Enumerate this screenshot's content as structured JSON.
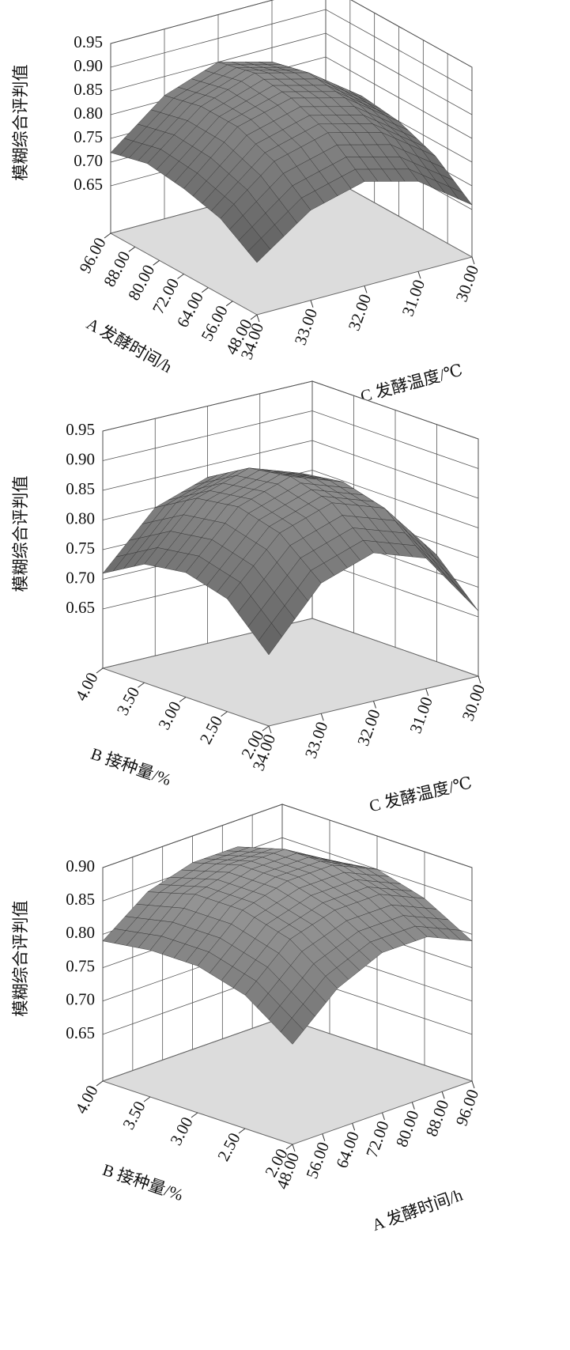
{
  "chart_data": [
    {
      "type": "surface3d",
      "zlabel": "模糊综合评判值",
      "xlabel": "A 发酵时间/h",
      "ylabel": "C 发酵温度/℃",
      "xlim": [
        48,
        96
      ],
      "xticks": [
        {
          "value": 48,
          "label": "48.00"
        },
        {
          "value": 56,
          "label": "56.00"
        },
        {
          "value": 64,
          "label": "64.00"
        },
        {
          "value": 72,
          "label": "72.00"
        },
        {
          "value": 80,
          "label": "80.00"
        },
        {
          "value": 88,
          "label": "88.00"
        },
        {
          "value": 96,
          "label": "96.00"
        }
      ],
      "ylim": [
        34,
        30
      ],
      "yticks": [
        {
          "value": 34,
          "label": "34.00"
        },
        {
          "value": 33,
          "label": "33.00"
        },
        {
          "value": 32,
          "label": "32.00"
        },
        {
          "value": 31,
          "label": "31.00"
        },
        {
          "value": 30,
          "label": "30.00"
        }
      ],
      "zlim": [
        0.55,
        0.95
      ],
      "zticks": [
        0.65,
        {
          "value": 0.7,
          "label": "0.70"
        },
        0.75,
        {
          "value": 0.8,
          "label": "0.80"
        },
        0.85,
        {
          "value": 0.9,
          "label": "0.90"
        },
        0.95
      ],
      "x": [
        48,
        60,
        72,
        84,
        96
      ],
      "y": [
        34,
        33,
        32,
        31,
        30
      ],
      "z": [
        [
          0.66,
          0.74,
          0.77,
          0.74,
          0.66
        ],
        [
          0.71,
          0.8,
          0.83,
          0.8,
          0.72
        ],
        [
          0.73,
          0.83,
          0.86,
          0.83,
          0.75
        ],
        [
          0.74,
          0.83,
          0.87,
          0.84,
          0.76
        ],
        [
          0.72,
          0.81,
          0.85,
          0.82,
          0.75
        ]
      ]
    },
    {
      "type": "surface3d",
      "zlabel": "模糊综合评判值",
      "xlabel": "B 接种量/%",
      "ylabel": "C 发酵温度/℃",
      "xlim": [
        2,
        4
      ],
      "xticks": [
        {
          "value": 2,
          "label": "2.00"
        },
        {
          "value": 2.5,
          "label": "2.50"
        },
        {
          "value": 3,
          "label": "3.00"
        },
        {
          "value": 3.5,
          "label": "3.50"
        },
        {
          "value": 4,
          "label": "4.00"
        }
      ],
      "ylim": [
        34,
        30
      ],
      "yticks": [
        {
          "value": 34,
          "label": "34.00"
        },
        {
          "value": 33,
          "label": "33.00"
        },
        {
          "value": 32,
          "label": "32.00"
        },
        {
          "value": 31,
          "label": "31.00"
        },
        {
          "value": 30,
          "label": "30.00"
        }
      ],
      "zlim": [
        0.55,
        0.95
      ],
      "zticks": [
        0.65,
        {
          "value": 0.7,
          "label": "0.70"
        },
        0.75,
        {
          "value": 0.8,
          "label": "0.80"
        },
        0.85,
        {
          "value": 0.9,
          "label": "0.90"
        },
        0.95
      ],
      "x": [
        2,
        2.5,
        3,
        3.5,
        4
      ],
      "y": [
        34,
        33,
        32,
        31,
        30
      ],
      "z": [
        [
          0.67,
          0.77,
          0.8,
          0.77,
          0.66
        ],
        [
          0.74,
          0.83,
          0.86,
          0.83,
          0.73
        ],
        [
          0.76,
          0.85,
          0.88,
          0.85,
          0.75
        ],
        [
          0.75,
          0.84,
          0.87,
          0.84,
          0.74
        ],
        [
          0.71,
          0.8,
          0.83,
          0.8,
          0.7
        ]
      ]
    },
    {
      "type": "surface3d",
      "zlabel": "模糊综合评判值",
      "xlabel": "B 接种量/%",
      "ylabel": "A 发酵时间/h",
      "xlim": [
        2,
        4
      ],
      "xticks": [
        {
          "value": 2,
          "label": "2.00"
        },
        {
          "value": 2.5,
          "label": "2.50"
        },
        {
          "value": 3,
          "label": "3.00"
        },
        {
          "value": 3.5,
          "label": "3.50"
        },
        {
          "value": 4,
          "label": "4.00"
        }
      ],
      "ylim": [
        48,
        96
      ],
      "yticks": [
        {
          "value": 48,
          "label": "48.00"
        },
        {
          "value": 56,
          "label": "56.00"
        },
        {
          "value": 64,
          "label": "64.00"
        },
        {
          "value": 72,
          "label": "72.00"
        },
        {
          "value": 80,
          "label": "80.00"
        },
        {
          "value": 88,
          "label": "88.00"
        },
        {
          "value": 96,
          "label": "96.00"
        }
      ],
      "zlim": [
        0.58,
        0.9
      ],
      "zticks": [
        0.65,
        {
          "value": 0.7,
          "label": "0.70"
        },
        0.75,
        {
          "value": 0.8,
          "label": "0.80"
        },
        0.85,
        {
          "value": 0.9,
          "label": "0.90"
        }
      ],
      "x": [
        2,
        2.5,
        3,
        3.5,
        4
      ],
      "y": [
        48,
        60,
        72,
        84,
        96
      ],
      "z": [
        [
          0.73,
          0.79,
          0.82,
          0.82,
          0.79
        ],
        [
          0.78,
          0.84,
          0.86,
          0.86,
          0.83
        ],
        [
          0.8,
          0.86,
          0.88,
          0.88,
          0.85
        ],
        [
          0.8,
          0.86,
          0.88,
          0.88,
          0.84
        ],
        [
          0.79,
          0.84,
          0.86,
          0.86,
          0.82
        ]
      ]
    }
  ]
}
